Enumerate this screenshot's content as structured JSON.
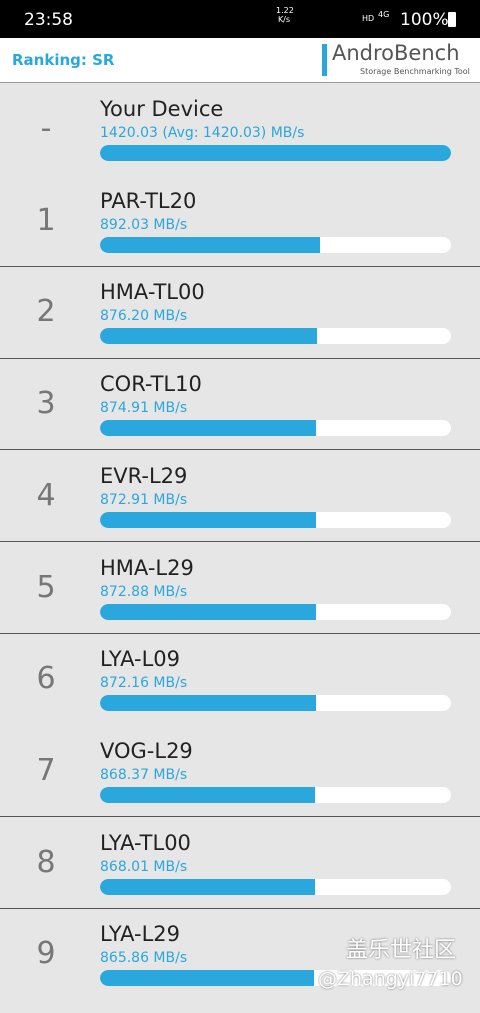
{
  "status_bar": {
    "time": "23:58",
    "net_speed": "1.22",
    "net_unit": "K/s",
    "hd": "HD",
    "network": "4G",
    "battery": "100%"
  },
  "header": {
    "title": "Ranking: SR",
    "brand": "AndroBench",
    "tagline": "Storage Benchmarking Tool"
  },
  "rows": [
    {
      "rank": "-",
      "name": "Your Device",
      "value": 1420.03,
      "value_label": "1420.03 (Avg: 1420.03) MB/s"
    },
    {
      "rank": "1",
      "name": "PAR-TL20",
      "value": 892.03,
      "value_label": "892.03 MB/s"
    },
    {
      "rank": "2",
      "name": "HMA-TL00",
      "value": 876.2,
      "value_label": "876.20 MB/s"
    },
    {
      "rank": "3",
      "name": "COR-TL10",
      "value": 874.91,
      "value_label": "874.91 MB/s"
    },
    {
      "rank": "4",
      "name": "EVR-L29",
      "value": 872.91,
      "value_label": "872.91 MB/s"
    },
    {
      "rank": "5",
      "name": "HMA-L29",
      "value": 872.88,
      "value_label": "872.88 MB/s"
    },
    {
      "rank": "6",
      "name": "LYA-L09",
      "value": 872.16,
      "value_label": "872.16 MB/s"
    },
    {
      "rank": "7",
      "name": "VOG-L29",
      "value": 868.37,
      "value_label": "868.37 MB/s"
    },
    {
      "rank": "8",
      "name": "LYA-TL00",
      "value": 868.01,
      "value_label": "868.01 MB/s"
    },
    {
      "rank": "9",
      "name": "LYA-L29",
      "value": 865.86,
      "value_label": "865.86 MB/s"
    }
  ],
  "watermark": {
    "line1": "盖乐世社区",
    "line2": "@Zhangyi7710"
  }
}
